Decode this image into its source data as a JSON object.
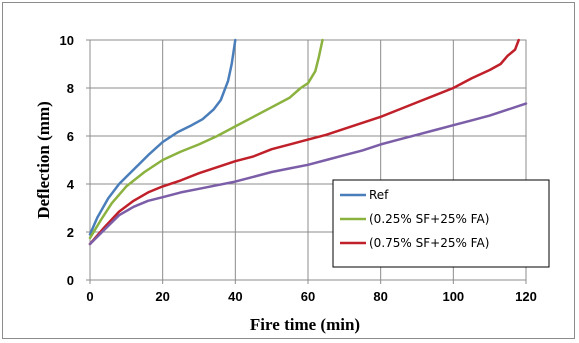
{
  "chart_data": {
    "type": "line",
    "title": "",
    "xlabel": "Fire time (min)",
    "ylabel": "Deflection (mm)",
    "xlim": [
      0,
      120
    ],
    "ylim": [
      0,
      10
    ],
    "xticks": [
      0,
      20,
      40,
      60,
      80,
      100,
      120
    ],
    "yticks": [
      0,
      2,
      4,
      6,
      8,
      10
    ],
    "grid": true,
    "legend_position": "bottom-right",
    "series": [
      {
        "name": "Ref",
        "color": "#4a7ebb",
        "points": [
          [
            0,
            1.9
          ],
          [
            2,
            2.6
          ],
          [
            5,
            3.4
          ],
          [
            8,
            4.0
          ],
          [
            12,
            4.6
          ],
          [
            16,
            5.2
          ],
          [
            20,
            5.75
          ],
          [
            24,
            6.15
          ],
          [
            28,
            6.45
          ],
          [
            31,
            6.7
          ],
          [
            34,
            7.1
          ],
          [
            36,
            7.5
          ],
          [
            38,
            8.3
          ],
          [
            39,
            9.0
          ],
          [
            40,
            10
          ]
        ]
      },
      {
        "name": "(0.25% SF+25% FA)",
        "color": "#8bb23f",
        "points": [
          [
            0,
            1.75
          ],
          [
            3,
            2.5
          ],
          [
            6,
            3.2
          ],
          [
            10,
            3.9
          ],
          [
            15,
            4.5
          ],
          [
            20,
            5.0
          ],
          [
            25,
            5.35
          ],
          [
            30,
            5.65
          ],
          [
            35,
            6.0
          ],
          [
            40,
            6.4
          ],
          [
            45,
            6.8
          ],
          [
            50,
            7.2
          ],
          [
            55,
            7.6
          ],
          [
            58,
            8.0
          ],
          [
            60,
            8.2
          ],
          [
            62,
            8.7
          ],
          [
            63,
            9.3
          ],
          [
            64,
            10
          ]
        ]
      },
      {
        "name": "(0.75% SF+25% FA)",
        "color": "#c0202a",
        "points": [
          [
            0,
            1.5
          ],
          [
            4,
            2.2
          ],
          [
            8,
            2.85
          ],
          [
            12,
            3.3
          ],
          [
            16,
            3.65
          ],
          [
            20,
            3.9
          ],
          [
            25,
            4.15
          ],
          [
            30,
            4.45
          ],
          [
            35,
            4.7
          ],
          [
            40,
            4.95
          ],
          [
            45,
            5.15
          ],
          [
            50,
            5.45
          ],
          [
            55,
            5.65
          ],
          [
            60,
            5.85
          ],
          [
            65,
            6.05
          ],
          [
            70,
            6.3
          ],
          [
            75,
            6.55
          ],
          [
            80,
            6.8
          ],
          [
            85,
            7.1
          ],
          [
            90,
            7.4
          ],
          [
            95,
            7.7
          ],
          [
            100,
            8.0
          ],
          [
            105,
            8.4
          ],
          [
            110,
            8.75
          ],
          [
            113,
            9.0
          ],
          [
            115,
            9.35
          ],
          [
            117,
            9.6
          ],
          [
            118,
            10
          ]
        ]
      },
      {
        "name": "",
        "color": "#7b5ea7",
        "points": [
          [
            0,
            1.5
          ],
          [
            4,
            2.1
          ],
          [
            8,
            2.7
          ],
          [
            12,
            3.05
          ],
          [
            16,
            3.3
          ],
          [
            20,
            3.45
          ],
          [
            25,
            3.65
          ],
          [
            30,
            3.8
          ],
          [
            35,
            3.95
          ],
          [
            40,
            4.1
          ],
          [
            45,
            4.3
          ],
          [
            50,
            4.5
          ],
          [
            55,
            4.65
          ],
          [
            60,
            4.8
          ],
          [
            65,
            5.0
          ],
          [
            70,
            5.2
          ],
          [
            75,
            5.4
          ],
          [
            80,
            5.65
          ],
          [
            85,
            5.85
          ],
          [
            90,
            6.05
          ],
          [
            95,
            6.25
          ],
          [
            100,
            6.45
          ],
          [
            105,
            6.65
          ],
          [
            110,
            6.85
          ],
          [
            115,
            7.1
          ],
          [
            120,
            7.35
          ]
        ]
      }
    ]
  }
}
